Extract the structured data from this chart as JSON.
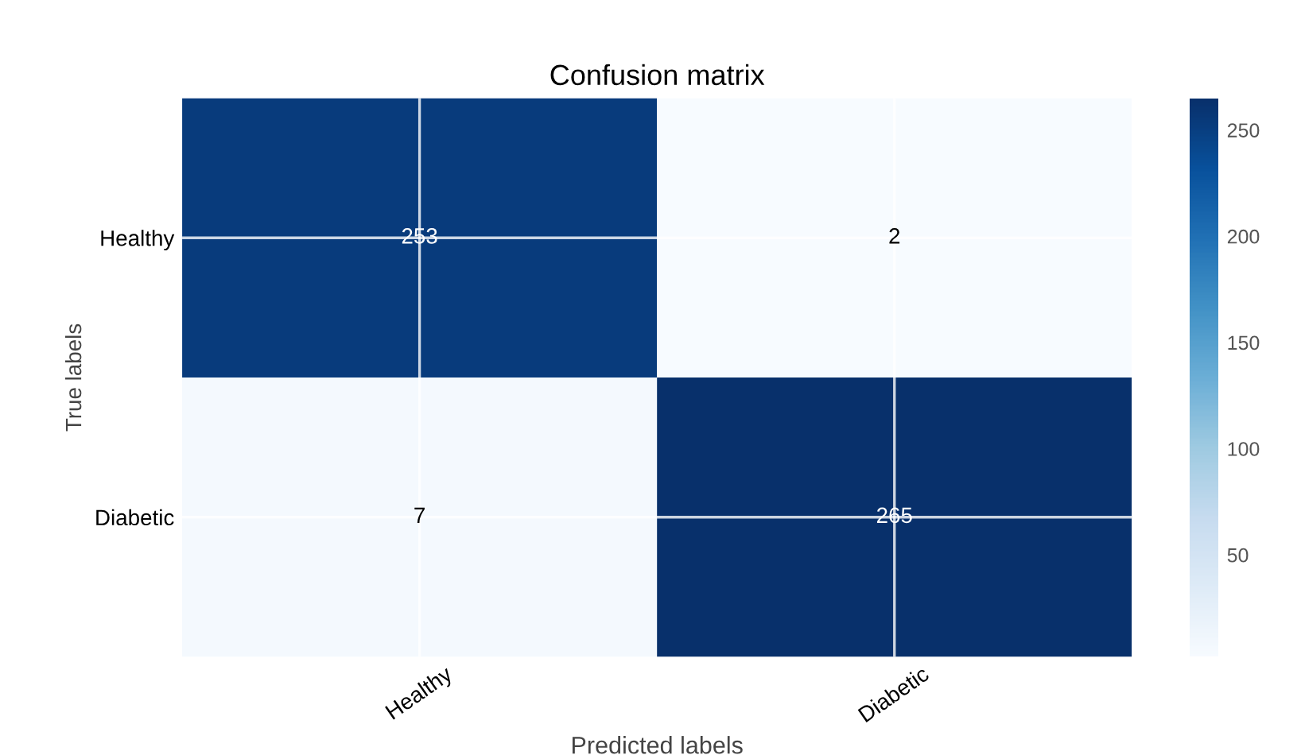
{
  "chart_data": {
    "type": "heatmap",
    "title": "Confusion matrix",
    "xlabel": "Predicted labels",
    "ylabel": "True labels",
    "categories": [
      "Healthy",
      "Diabetic"
    ],
    "y_categories": [
      "Healthy",
      "Diabetic"
    ],
    "cells": [
      [
        253,
        2
      ],
      [
        7,
        265
      ]
    ],
    "clim": [
      2,
      265
    ],
    "cticks": [
      50,
      100,
      150,
      200,
      250
    ],
    "data_labels": true,
    "grid": true
  }
}
